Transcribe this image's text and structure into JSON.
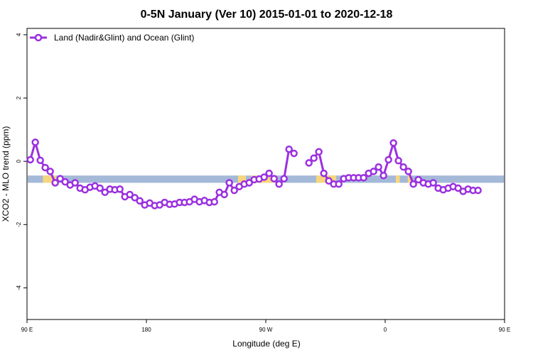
{
  "chart_data": {
    "type": "line",
    "title": "0-5N January (Ver 10)   2015-01-01 to 2020-12-18",
    "xlabel": "Longitude (deg E)",
    "ylabel": "XCO2 - MLO trend (ppm)",
    "xlim": [
      90,
      450
    ],
    "ylim": [
      -5,
      4.2
    ],
    "x_ticks": [
      {
        "value": 90,
        "label": "90 E"
      },
      {
        "value": 180,
        "label": "180"
      },
      {
        "value": 270,
        "label": "90 W"
      },
      {
        "value": 360,
        "label": "0"
      },
      {
        "value": 450,
        "label": "90 E"
      },
      {
        "value": 540,
        "label": "180"
      }
    ],
    "y_ticks": [
      4,
      2,
      0,
      -2,
      -4
    ],
    "grid": false,
    "legend_position": "top-left",
    "series": [
      {
        "name": "Land (Nadir&Glint) and Ocean (Glint)",
        "color": "#9b30e0",
        "points": [
          [
            92.5,
            0.05
          ],
          [
            96.25,
            0.6
          ],
          [
            100,
            0.03
          ],
          [
            103.75,
            -0.2
          ],
          [
            107.5,
            -0.32
          ],
          [
            111.25,
            -0.68
          ],
          [
            115,
            -0.55
          ],
          [
            118.75,
            -0.65
          ],
          [
            122.5,
            -0.75
          ],
          [
            126.25,
            -0.68
          ],
          [
            130,
            -0.85
          ],
          [
            133.75,
            -0.9
          ],
          [
            137.5,
            -0.82
          ],
          [
            141.25,
            -0.78
          ],
          [
            145,
            -0.85
          ],
          [
            148.75,
            -0.98
          ],
          [
            152.5,
            -0.88
          ],
          [
            156.25,
            -0.9
          ],
          [
            160,
            -0.88
          ],
          [
            163.75,
            -1.12
          ],
          [
            167.5,
            -1.05
          ],
          [
            171.25,
            -1.15
          ],
          [
            175,
            -1.25
          ],
          [
            178.75,
            -1.38
          ],
          [
            182.5,
            -1.32
          ],
          [
            186.25,
            -1.4
          ],
          [
            190,
            -1.38
          ],
          [
            193.75,
            -1.3
          ],
          [
            197.5,
            -1.36
          ],
          [
            201.25,
            -1.35
          ],
          [
            205,
            -1.3
          ],
          [
            208.75,
            -1.3
          ],
          [
            212.5,
            -1.28
          ],
          [
            216.25,
            -1.2
          ],
          [
            220,
            -1.28
          ],
          [
            223.75,
            -1.24
          ],
          [
            227.5,
            -1.3
          ],
          [
            231.25,
            -1.28
          ],
          [
            235,
            -0.98
          ],
          [
            238.75,
            -1.05
          ],
          [
            242.5,
            -0.68
          ],
          [
            246.25,
            -0.92
          ],
          [
            250,
            -0.8
          ],
          [
            253.75,
            -0.72
          ],
          [
            257.5,
            -0.68
          ],
          [
            261.25,
            -0.58
          ],
          [
            265,
            -0.56
          ],
          [
            268.75,
            -0.5
          ],
          [
            272.5,
            -0.38
          ],
          [
            276.25,
            -0.55
          ],
          [
            280,
            -0.72
          ],
          [
            283.75,
            -0.55
          ],
          [
            287.5,
            0.38
          ],
          [
            291.25,
            0.25
          ],
          [
            302.5,
            -0.05
          ],
          [
            306.25,
            0.1
          ],
          [
            310,
            0.3
          ],
          [
            313.75,
            -0.38
          ],
          [
            317.5,
            -0.62
          ],
          [
            321.25,
            -0.72
          ],
          [
            325,
            -0.72
          ],
          [
            328.75,
            -0.55
          ],
          [
            332.5,
            -0.52
          ],
          [
            336.25,
            -0.52
          ],
          [
            340,
            -0.52
          ],
          [
            343.75,
            -0.52
          ],
          [
            347.5,
            -0.38
          ],
          [
            351.25,
            -0.32
          ],
          [
            355,
            -0.18
          ],
          [
            358.75,
            -0.45
          ],
          [
            362.5,
            0.05
          ],
          [
            366.25,
            0.58
          ],
          [
            370,
            0.02
          ],
          [
            373.75,
            -0.18
          ],
          [
            377.5,
            -0.32
          ],
          [
            381.25,
            -0.72
          ],
          [
            385,
            -0.58
          ],
          [
            388.75,
            -0.68
          ],
          [
            392.5,
            -0.72
          ],
          [
            396.25,
            -0.68
          ],
          [
            400,
            -0.85
          ],
          [
            403.75,
            -0.9
          ],
          [
            407.5,
            -0.85
          ],
          [
            411.25,
            -0.8
          ],
          [
            415,
            -0.85
          ],
          [
            418.75,
            -0.95
          ],
          [
            422.5,
            -0.88
          ],
          [
            426.25,
            -0.92
          ],
          [
            430,
            -0.92
          ]
        ]
      }
    ],
    "surface_band": {
      "y_range": [
        -0.68,
        -0.45
      ],
      "ocean_color": "#a4b8d8",
      "land_color": "#f7d77e",
      "land_segments": [
        [
          102,
          106
        ],
        [
          106,
          112
        ],
        [
          249,
          255
        ],
        [
          259,
          276
        ],
        [
          308,
          323
        ],
        [
          368,
          371
        ],
        [
          377,
          380
        ]
      ]
    }
  }
}
